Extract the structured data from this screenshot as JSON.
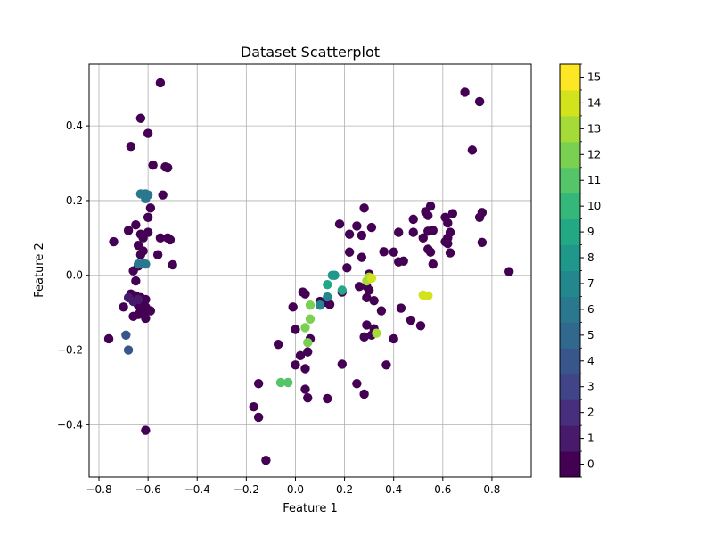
{
  "chart_data": {
    "type": "scatter",
    "title": "Dataset Scatterplot",
    "xlabel": "Feature 1",
    "ylabel": "Feature 2",
    "xlim": [
      -0.84,
      0.96
    ],
    "ylim": [
      -0.54,
      0.565
    ],
    "xticks": [
      -0.8,
      -0.6,
      -0.4,
      -0.2,
      0.0,
      0.2,
      0.4,
      0.6,
      0.8
    ],
    "xtick_labels": [
      "−0.8",
      "−0.6",
      "−0.4",
      "−0.2",
      "0.0",
      "0.2",
      "0.4",
      "0.6",
      "0.8"
    ],
    "yticks": [
      -0.4,
      -0.2,
      0.0,
      0.2,
      0.4
    ],
    "ytick_labels": [
      "−0.4",
      "−0.2",
      "0.0",
      "0.2",
      "0.4"
    ],
    "grid": true,
    "colorbar": {
      "levels": [
        0,
        1,
        2,
        3,
        4,
        5,
        6,
        7,
        8,
        9,
        10,
        11,
        12,
        13,
        14,
        15
      ],
      "labels": [
        "0",
        "1",
        "2",
        "3",
        "4",
        "5",
        "6",
        "7",
        "8",
        "9",
        "10",
        "11",
        "12",
        "13",
        "14",
        "15"
      ],
      "colors": [
        "#440154",
        "#481a6c",
        "#472f7d",
        "#414487",
        "#39568c",
        "#31688e",
        "#2a788e",
        "#23888e",
        "#1f988b",
        "#22a884",
        "#35b779",
        "#54c568",
        "#7ad151",
        "#a5db36",
        "#d2e21b",
        "#fde725"
      ]
    },
    "points": [
      [
        -0.55,
        0.515,
        0
      ],
      [
        -0.63,
        0.42,
        0
      ],
      [
        -0.6,
        0.38,
        0
      ],
      [
        -0.67,
        0.345,
        0
      ],
      [
        -0.58,
        0.295,
        0
      ],
      [
        -0.53,
        0.29,
        0
      ],
      [
        -0.52,
        0.288,
        0
      ],
      [
        -0.54,
        0.215,
        0
      ],
      [
        -0.59,
        0.18,
        0
      ],
      [
        -0.65,
        0.135,
        0
      ],
      [
        -0.6,
        0.155,
        0
      ],
      [
        -0.68,
        0.12,
        0
      ],
      [
        -0.74,
        0.09,
        0
      ],
      [
        -0.63,
        0.11,
        0
      ],
      [
        -0.62,
        0.1,
        0
      ],
      [
        -0.6,
        0.115,
        0
      ],
      [
        -0.55,
        0.1,
        0
      ],
      [
        -0.52,
        0.1,
        0
      ],
      [
        -0.51,
        0.095,
        0
      ],
      [
        -0.64,
        0.08,
        0
      ],
      [
        -0.62,
        0.065,
        0
      ],
      [
        -0.63,
        0.055,
        0
      ],
      [
        -0.56,
        0.055,
        0
      ],
      [
        -0.5,
        0.028,
        0
      ],
      [
        -0.64,
        0.025,
        0
      ],
      [
        -0.66,
        0.012,
        0
      ],
      [
        -0.65,
        -0.015,
        0
      ],
      [
        -0.67,
        -0.05,
        0
      ],
      [
        -0.65,
        -0.055,
        0
      ],
      [
        -0.63,
        -0.06,
        0
      ],
      [
        -0.61,
        -0.065,
        0
      ],
      [
        -0.62,
        -0.075,
        0
      ],
      [
        -0.7,
        -0.085,
        0
      ],
      [
        -0.64,
        -0.08,
        0
      ],
      [
        -0.63,
        -0.09,
        0
      ],
      [
        -0.61,
        -0.085,
        0
      ],
      [
        -0.59,
        -0.095,
        0
      ],
      [
        -0.62,
        -0.1,
        0
      ],
      [
        -0.66,
        -0.11,
        0
      ],
      [
        -0.64,
        -0.105,
        0
      ],
      [
        -0.61,
        -0.115,
        0
      ],
      [
        -0.76,
        -0.17,
        0
      ],
      [
        -0.61,
        -0.415,
        0
      ],
      [
        -0.68,
        -0.06,
        1
      ],
      [
        -0.66,
        -0.07,
        1
      ],
      [
        -0.64,
        -0.065,
        1
      ],
      [
        -0.69,
        -0.16,
        4
      ],
      [
        -0.68,
        -0.2,
        4
      ],
      [
        -0.64,
        0.03,
        6
      ],
      [
        -0.62,
        0.032,
        6
      ],
      [
        -0.61,
        0.03,
        6
      ],
      [
        -0.63,
        0.218,
        6
      ],
      [
        -0.61,
        0.218,
        6
      ],
      [
        -0.6,
        0.215,
        6
      ],
      [
        -0.61,
        0.205,
        6
      ],
      [
        0.69,
        0.49,
        0
      ],
      [
        0.75,
        0.465,
        0
      ],
      [
        0.72,
        0.335,
        0
      ],
      [
        0.55,
        0.185,
        0
      ],
      [
        0.28,
        0.18,
        0
      ],
      [
        0.64,
        0.165,
        0
      ],
      [
        0.76,
        0.168,
        0
      ],
      [
        0.75,
        0.155,
        0
      ],
      [
        0.54,
        0.16,
        0
      ],
      [
        0.53,
        0.17,
        0
      ],
      [
        0.48,
        0.15,
        0
      ],
      [
        0.61,
        0.155,
        0
      ],
      [
        0.62,
        0.14,
        0
      ],
      [
        0.56,
        0.12,
        0
      ],
      [
        0.54,
        0.118,
        0
      ],
      [
        0.63,
        0.115,
        0
      ],
      [
        0.48,
        0.115,
        0
      ],
      [
        0.42,
        0.115,
        0
      ],
      [
        0.52,
        0.1,
        0
      ],
      [
        0.62,
        0.1,
        0
      ],
      [
        0.61,
        0.09,
        0
      ],
      [
        0.62,
        0.085,
        0
      ],
      [
        0.76,
        0.088,
        0
      ],
      [
        0.87,
        0.01,
        0
      ],
      [
        0.18,
        0.137,
        0
      ],
      [
        0.25,
        0.132,
        0
      ],
      [
        0.31,
        0.128,
        0
      ],
      [
        0.22,
        0.11,
        0
      ],
      [
        0.27,
        0.107,
        0
      ],
      [
        0.36,
        0.063,
        0
      ],
      [
        0.4,
        0.062,
        0
      ],
      [
        0.22,
        0.062,
        0
      ],
      [
        0.54,
        0.07,
        0
      ],
      [
        0.55,
        0.062,
        0
      ],
      [
        0.63,
        0.06,
        0
      ],
      [
        0.27,
        0.048,
        0
      ],
      [
        0.42,
        0.036,
        0
      ],
      [
        0.44,
        0.038,
        0
      ],
      [
        0.56,
        0.03,
        0
      ],
      [
        0.21,
        0.02,
        0
      ],
      [
        0.3,
        0.003,
        0
      ],
      [
        0.26,
        -0.03,
        0
      ],
      [
        0.29,
        -0.03,
        0
      ],
      [
        0.3,
        -0.04,
        0
      ],
      [
        0.03,
        -0.045,
        0
      ],
      [
        0.04,
        -0.05,
        0
      ],
      [
        0.19,
        -0.045,
        0
      ],
      [
        0.29,
        -0.06,
        0
      ],
      [
        0.32,
        -0.068,
        0
      ],
      [
        0.1,
        -0.07,
        0
      ],
      [
        0.12,
        -0.072,
        0
      ],
      [
        0.14,
        -0.078,
        0
      ],
      [
        0.35,
        -0.095,
        0
      ],
      [
        0.43,
        -0.088,
        0
      ],
      [
        0.47,
        -0.12,
        0
      ],
      [
        0.51,
        -0.135,
        0
      ],
      [
        -0.01,
        -0.085,
        0
      ],
      [
        0.29,
        -0.133,
        0
      ],
      [
        0.32,
        -0.143,
        0
      ],
      [
        0.31,
        -0.16,
        0
      ],
      [
        0.28,
        -0.165,
        0
      ],
      [
        0.4,
        -0.17,
        0
      ],
      [
        0.06,
        -0.17,
        0
      ],
      [
        0.0,
        -0.145,
        0
      ],
      [
        -0.07,
        -0.185,
        0
      ],
      [
        0.0,
        -0.24,
        0
      ],
      [
        0.05,
        -0.205,
        0
      ],
      [
        0.02,
        -0.215,
        0
      ],
      [
        0.04,
        -0.25,
        0
      ],
      [
        0.19,
        -0.238,
        0
      ],
      [
        0.37,
        -0.24,
        0
      ],
      [
        -0.15,
        -0.29,
        0
      ],
      [
        0.25,
        -0.29,
        0
      ],
      [
        0.04,
        -0.305,
        0
      ],
      [
        0.28,
        -0.318,
        0
      ],
      [
        0.05,
        -0.328,
        0
      ],
      [
        0.13,
        -0.33,
        0
      ],
      [
        -0.17,
        -0.352,
        0
      ],
      [
        -0.15,
        -0.38,
        0
      ],
      [
        -0.12,
        -0.495,
        0
      ],
      [
        0.1,
        -0.08,
        7
      ],
      [
        0.13,
        -0.058,
        7
      ],
      [
        0.15,
        0.0,
        8
      ],
      [
        0.16,
        0.0,
        8
      ],
      [
        0.13,
        -0.025,
        9
      ],
      [
        0.19,
        -0.04,
        9
      ],
      [
        -0.06,
        -0.287,
        11
      ],
      [
        -0.03,
        -0.287,
        11
      ],
      [
        0.06,
        -0.08,
        12
      ],
      [
        0.06,
        -0.117,
        12
      ],
      [
        0.04,
        -0.14,
        12
      ],
      [
        0.05,
        -0.18,
        12
      ],
      [
        0.33,
        -0.155,
        13
      ],
      [
        0.3,
        -0.005,
        13
      ],
      [
        0.29,
        -0.015,
        13
      ],
      [
        0.52,
        -0.053,
        14
      ],
      [
        0.54,
        -0.055,
        14
      ],
      [
        0.31,
        -0.008,
        14
      ]
    ]
  }
}
